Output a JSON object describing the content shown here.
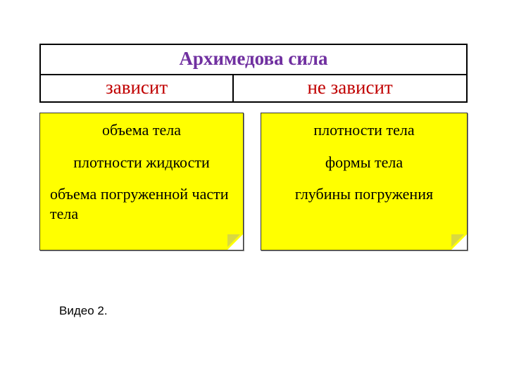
{
  "colors": {
    "title": "#7030a0",
    "subheader": "#c00000",
    "sticky_bg": "#ffff00",
    "border": "#000000",
    "text": "#000000",
    "page_bg": "#ffffff"
  },
  "table": {
    "title": "Архимедова сила",
    "depends_label": "зависит",
    "not_depends_label": "не зависит"
  },
  "depends_box": {
    "items": [
      "объема тела",
      "плотности жидкости",
      "объема погруженной части тела"
    ]
  },
  "not_depends_box": {
    "items": [
      "плотности тела",
      "формы тела",
      "глубины погружения"
    ]
  },
  "footer": {
    "label": "Видео 2."
  }
}
